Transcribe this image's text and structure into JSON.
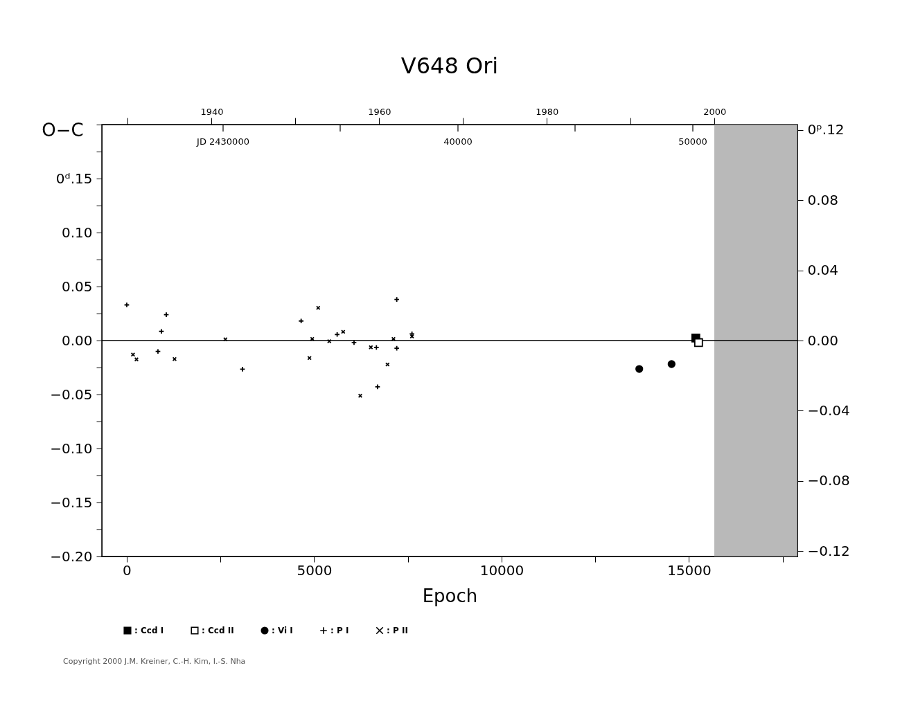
{
  "chart_data": {
    "type": "scatter",
    "title": "V648  Ori",
    "xlabel": "Epoch",
    "ylabel": "O−C",
    "xlim": [
      -665,
      17893
    ],
    "xticks": [
      0,
      {
        "value": 2500,
        "label": null
      },
      5000,
      {
        "value": 7500,
        "label": null
      },
      10000,
      {
        "value": 12500,
        "label": null
      },
      15000,
      {
        "value": 17500,
        "label": null
      }
    ],
    "ylim": [
      -0.2,
      0.2
    ],
    "yticks": [
      {
        "value": -0.2,
        "label": "−0.20"
      },
      {
        "value": -0.175,
        "label": null
      },
      -0.15,
      {
        "value": -0.125,
        "label": null
      },
      {
        "value": -0.1,
        "label": "−0.10"
      },
      {
        "value": -0.075,
        "label": null
      },
      -0.05,
      {
        "value": -0.025,
        "label": null
      },
      {
        "value": 0,
        "label": "0.00"
      },
      {
        "value": 0.025,
        "label": null
      },
      0.05,
      {
        "value": 0.075,
        "label": null
      },
      {
        "value": 0.1,
        "label": "0.10"
      },
      {
        "value": 0.125,
        "label": null
      },
      {
        "value": 0.15,
        "label": "0ᵈ.15"
      },
      {
        "value": 0.175,
        "label": null
      },
      {
        "value": 0.2,
        "label": null
      }
    ],
    "y2lim": [
      -0.123,
      0.123
    ],
    "y2ticks": [
      -0.12,
      -0.08,
      -0.04,
      {
        "value": 0,
        "label": "0.00"
      },
      0.04,
      0.08,
      {
        "value": 0.12,
        "label": "0ᵖ.12"
      }
    ],
    "x2lim": [
      1926.9,
      2009.9
    ],
    "x2ticks": [
      {
        "value": 1930,
        "label": null
      },
      1940,
      {
        "value": 1950,
        "label": null
      },
      1960,
      {
        "value": 1970,
        "label": null
      },
      1980,
      {
        "value": 1990,
        "label": null
      },
      2000
    ],
    "grid": false,
    "legend": "bottom left",
    "ref_lines": [
      {
        "axis": "y",
        "value": 0,
        "color": "#000000"
      }
    ],
    "bands": [
      {
        "axis": "x",
        "from": 15675,
        "to": 17893,
        "color": "#a8a8a8"
      }
    ],
    "annotations": [
      "JD 2430000",
      "40000",
      "50000",
      "Copyright 2000 J.M. Kreiner, C.-H. Kim, I.-S. Nha"
    ],
    "series": [
      {
        "name": ": Ccd I",
        "color": "#000000",
        "marker": "square",
        "x": [
          15181
        ],
        "values": [
          0.0024
        ]
      },
      {
        "name": ": Ccd II",
        "color": "#000000",
        "marker": "square_open",
        "x": [
          15255
        ],
        "values": [
          -0.0019
        ]
      },
      {
        "name": ": Vi I",
        "color": "#000000",
        "marker": "circle",
        "x": [
          13673,
          14535
        ],
        "values": [
          -0.0263,
          -0.0218
        ]
      },
      {
        "name": ": P I",
        "color": "#000000",
        "marker": "cross",
        "x": [
          0,
          924,
          832,
          1054,
          3087,
          4652,
          5613,
          6063,
          6660,
          6691,
          7203,
          7203,
          7609
        ],
        "values": [
          0.033,
          0.0085,
          -0.0101,
          0.0239,
          -0.0265,
          0.0181,
          0.0056,
          -0.0019,
          -0.0064,
          -0.0429,
          0.038,
          -0.0071,
          0.0062
        ]
      },
      {
        "name": ": P II",
        "color": "#000000",
        "marker": "x",
        "x": [
          166,
          259,
          1275,
          2631,
          4874,
          4948,
          5107,
          5403,
          5773,
          6229,
          6512,
          6956,
          7116,
          7609
        ],
        "values": [
          -0.013,
          -0.0175,
          -0.0171,
          0.0011,
          -0.0162,
          0.0015,
          0.0303,
          -0.0006,
          0.0081,
          -0.0511,
          -0.0062,
          -0.0222,
          0.0015,
          0.0038
        ]
      }
    ]
  }
}
